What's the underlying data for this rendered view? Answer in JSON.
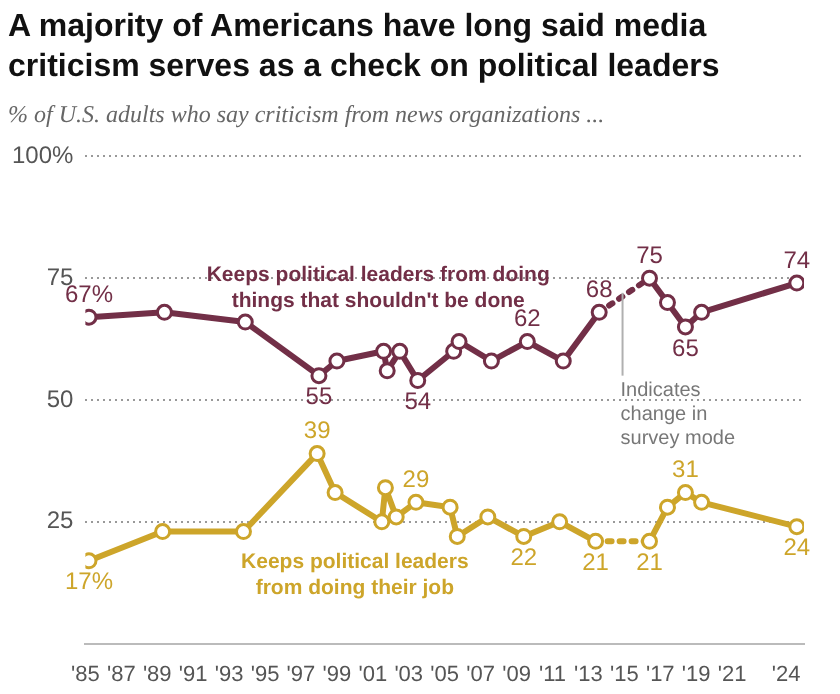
{
  "chart_data": {
    "type": "line",
    "title": "A majority of Americans have long said media criticism serves as a check on political leaders",
    "subtitle": "% of U.S. adults who say criticism from news organizations ...",
    "xlim": [
      1985,
      2025
    ],
    "xticks": [
      {
        "value": 1985,
        "label": "'85"
      },
      {
        "value": 1987,
        "label": "'87"
      },
      {
        "value": 1989,
        "label": "'89"
      },
      {
        "value": 1991,
        "label": "'91"
      },
      {
        "value": 1993,
        "label": "'93"
      },
      {
        "value": 1995,
        "label": "'95"
      },
      {
        "value": 1997,
        "label": "'97"
      },
      {
        "value": 1999,
        "label": "'99"
      },
      {
        "value": 2001,
        "label": "'01"
      },
      {
        "value": 2003,
        "label": "'03"
      },
      {
        "value": 2005,
        "label": "'05"
      },
      {
        "value": 2007,
        "label": "'07"
      },
      {
        "value": 2009,
        "label": "'09"
      },
      {
        "value": 2011,
        "label": "'11"
      },
      {
        "value": 2013,
        "label": "'13"
      },
      {
        "value": 2015,
        "label": "'15"
      },
      {
        "value": 2017,
        "label": "'17"
      },
      {
        "value": 2019,
        "label": "'19"
      },
      {
        "value": 2021,
        "label": "'21"
      },
      {
        "value": 2024,
        "label": "'24"
      }
    ],
    "ylim": [
      0,
      100
    ],
    "yticks": [
      25,
      50,
      75,
      {
        "value": 100,
        "label": "100%"
      }
    ],
    "grid": "y",
    "marker": "circle",
    "legend": false,
    "ref_lines": [
      {
        "axis": "x",
        "value": 2014.9,
        "label": "Indicates change in survey mode",
        "color": "#b0b0b0"
      }
    ],
    "series": [
      {
        "name": "Keeps political leaders from doing things that shouldn't be done",
        "color": "#722f47",
        "x": [
          1985.2,
          1989.4,
          1993.9,
          1998,
          1999,
          2001.6,
          2001.8,
          2002.5,
          2003.5,
          2005.5,
          2005.8,
          2007.6,
          2009.6,
          2011.6,
          2013.6,
          2016.4,
          2017.4,
          2018.4,
          2019.3,
          2024.6
        ],
        "values": [
          67,
          68,
          66,
          55,
          58,
          60,
          56,
          60,
          54,
          60,
          62,
          58,
          62,
          58,
          68,
          75,
          70,
          65,
          68,
          74
        ],
        "value_labels": [
          "67%",
          null,
          null,
          "55",
          null,
          null,
          null,
          null,
          "54",
          null,
          null,
          null,
          "62",
          null,
          "68",
          "75",
          null,
          "65",
          null,
          "74"
        ]
      },
      {
        "name": "Keeps political leaders from doing their job",
        "color": "#cda52a",
        "x": [
          1985.2,
          1989.3,
          1993.8,
          1997.9,
          1998.9,
          2001.5,
          2001.7,
          2002.3,
          2003.4,
          2005.3,
          2005.7,
          2007.4,
          2009.4,
          2011.4,
          2013.4,
          2016.4,
          2017.4,
          2018.4,
          2019.3,
          2024.6
        ],
        "values": [
          17,
          23,
          23,
          39,
          31,
          25,
          32,
          26,
          29,
          28,
          22,
          26,
          22,
          25,
          21,
          21,
          28,
          31,
          29,
          24
        ],
        "value_labels": [
          "17%",
          null,
          null,
          "39",
          null,
          null,
          null,
          null,
          "29",
          null,
          null,
          null,
          "22",
          null,
          "21",
          "21",
          null,
          "31",
          null,
          "24"
        ]
      }
    ]
  }
}
